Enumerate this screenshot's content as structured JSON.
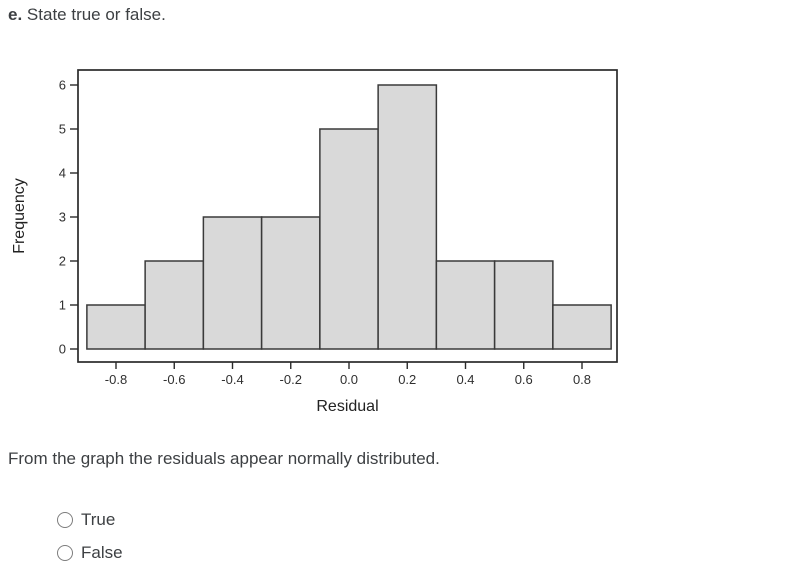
{
  "question": {
    "letter": "e.",
    "prompt": "State true or false."
  },
  "statement": "From the graph the residuals appear normally distributed.",
  "options": [
    {
      "label": "True",
      "selected": false
    },
    {
      "label": "False",
      "selected": false
    }
  ],
  "chart_data": {
    "type": "bar",
    "subtype": "histogram",
    "xlabel": "Residual",
    "ylabel": "Frequency",
    "bin_edges": [
      -0.9,
      -0.7,
      -0.5,
      -0.3,
      -0.1,
      0.1,
      0.3,
      0.5,
      0.7,
      0.9
    ],
    "bin_centers": [
      -0.8,
      -0.6,
      -0.4,
      -0.2,
      0.0,
      0.2,
      0.4,
      0.6,
      0.8
    ],
    "values": [
      1,
      2,
      3,
      3,
      5,
      6,
      2,
      2,
      1
    ],
    "x_tick_labels": [
      "-0.8",
      "-0.6",
      "-0.4",
      "-0.2",
      "0.0",
      "0.2",
      "0.4",
      "0.6",
      "0.8"
    ],
    "y_ticks": [
      0,
      1,
      2,
      3,
      4,
      5,
      6
    ],
    "xlim": [
      -0.925,
      0.925
    ],
    "ylim": [
      0,
      6.6
    ],
    "grid": false,
    "colors": {
      "bar_fill": "#d9d9d9",
      "bar_stroke": "#3a3a3a",
      "axis_stroke": "#2a2a2a",
      "tick_label": "#303030",
      "axis_label": "#222222"
    }
  }
}
